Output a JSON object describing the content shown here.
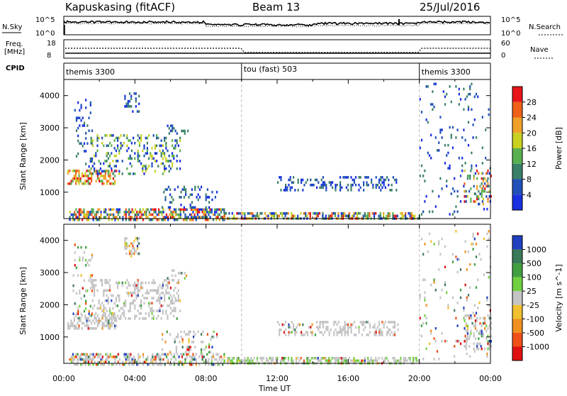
{
  "header": {
    "station": "Kapuskasing (fitACF)",
    "beam": "Beam 13",
    "date": "25/Jul/2016"
  },
  "noise_panel": {
    "left_label": "N.Sky",
    "left_ticks": [
      "10^5",
      "10^0"
    ],
    "right_ticks": [
      "10^5",
      "10^0"
    ],
    "right_label": "N.Search"
  },
  "freq_panel": {
    "left_label_1": "Freq.",
    "left_label_2": "[MHz]",
    "left_ticks": [
      "18",
      "8"
    ],
    "right_ticks": [
      "60",
      "0"
    ],
    "right_label": "Nave"
  },
  "cpid_panel": {
    "label": "CPID",
    "modes": [
      {
        "name": "themis 3300",
        "start_hour": 0,
        "end_hour": 10
      },
      {
        "name": "tou (fast) 503",
        "start_hour": 10,
        "end_hour": 20
      },
      {
        "name": "themis 3300",
        "start_hour": 20,
        "end_hour": 24
      }
    ]
  },
  "chart_data": [
    {
      "type": "heatmap",
      "name": "power",
      "ylabel": "Slant Range [km]",
      "xlabel": "",
      "yticks": [
        "4000",
        "3000",
        "2000",
        "1000"
      ],
      "ylim": [
        180,
        4500
      ],
      "xlim": [
        0,
        24
      ],
      "colorbar_label": "Power [dB]",
      "colorbar_ticks": [
        "28",
        "24",
        "20",
        "16",
        "12",
        "8",
        "4"
      ],
      "colorbar_colors": [
        "#e8141a",
        "#f06018",
        "#f0a028",
        "#c8d020",
        "#58b050",
        "#3a8068",
        "#2050b8",
        "#1830e0"
      ],
      "regions": [
        {
          "x": [
            0.3,
            9.0
          ],
          "y": [
            180,
            500
          ],
          "density": 0.55,
          "level": "mixed"
        },
        {
          "x": [
            0.2,
            3.0
          ],
          "y": [
            1300,
            1700
          ],
          "density": 0.5,
          "level": "high"
        },
        {
          "x": [
            1.5,
            6.5
          ],
          "y": [
            1600,
            2800
          ],
          "density": 0.25,
          "level": "mid"
        },
        {
          "x": [
            0.5,
            1.6
          ],
          "y": [
            1700,
            3900
          ],
          "density": 0.15,
          "level": "low"
        },
        {
          "x": [
            3.4,
            4.2
          ],
          "y": [
            3500,
            4100
          ],
          "density": 0.35,
          "level": "low"
        },
        {
          "x": [
            5.8,
            7.0
          ],
          "y": [
            2800,
            3100
          ],
          "density": 0.3,
          "level": "low"
        },
        {
          "x": [
            5.5,
            8.6
          ],
          "y": [
            500,
            1200
          ],
          "density": 0.2,
          "level": "low"
        },
        {
          "x": [
            9.0,
            20.0
          ],
          "y": [
            180,
            380
          ],
          "density": 0.6,
          "level": "mixed"
        },
        {
          "x": [
            12.0,
            18.8
          ],
          "y": [
            1100,
            1500
          ],
          "density": 0.3,
          "level": "low"
        },
        {
          "x": [
            20.0,
            24.0
          ],
          "y": [
            300,
            4400
          ],
          "density": 0.06,
          "level": "low"
        },
        {
          "x": [
            22.5,
            24.0
          ],
          "y": [
            600,
            1700
          ],
          "density": 0.35,
          "level": "mixed"
        }
      ]
    },
    {
      "type": "heatmap",
      "name": "velocity",
      "ylabel": "Slant Range [km]",
      "xlabel": "Time UT",
      "yticks": [
        "4000",
        "3000",
        "2000",
        "1000"
      ],
      "xticks": [
        "00:00",
        "04:00",
        "08:00",
        "12:00",
        "16:00",
        "20:00",
        "00:00"
      ],
      "ylim": [
        180,
        4500
      ],
      "xlim": [
        0,
        24
      ],
      "colorbar_label": "Velocity [m s^-1]",
      "colorbar_ticks": [
        "1000",
        "500",
        "100",
        "25",
        "-25",
        "-100",
        "-500",
        "-1000"
      ],
      "colorbar_colors": [
        "#2040c0",
        "#3a7a58",
        "#40a040",
        "#70d040",
        "#c4c4c4",
        "#f0c030",
        "#f09020",
        "#f05018",
        "#e01010"
      ],
      "regions": [
        {
          "x": [
            0.3,
            9.0
          ],
          "y": [
            180,
            500
          ],
          "density": 0.55,
          "level": "mixed"
        },
        {
          "x": [
            0.2,
            3.0
          ],
          "y": [
            1300,
            1700
          ],
          "density": 0.55,
          "level": "grey"
        },
        {
          "x": [
            1.5,
            6.5
          ],
          "y": [
            1600,
            2800
          ],
          "density": 0.3,
          "level": "grey"
        },
        {
          "x": [
            0.5,
            1.6
          ],
          "y": [
            1700,
            3900
          ],
          "density": 0.15,
          "level": "mixed"
        },
        {
          "x": [
            3.4,
            4.2
          ],
          "y": [
            3500,
            4100
          ],
          "density": 0.35,
          "level": "mixed"
        },
        {
          "x": [
            5.8,
            7.0
          ],
          "y": [
            2800,
            3100
          ],
          "density": 0.3,
          "level": "mixed"
        },
        {
          "x": [
            5.5,
            8.6
          ],
          "y": [
            500,
            1200
          ],
          "density": 0.2,
          "level": "mixed"
        },
        {
          "x": [
            9.0,
            20.0
          ],
          "y": [
            180,
            380
          ],
          "density": 0.6,
          "level": "greygreen"
        },
        {
          "x": [
            12.0,
            18.8
          ],
          "y": [
            1100,
            1500
          ],
          "density": 0.35,
          "level": "grey"
        },
        {
          "x": [
            20.0,
            24.0
          ],
          "y": [
            300,
            4400
          ],
          "density": 0.06,
          "level": "mixed"
        },
        {
          "x": [
            22.5,
            24.0
          ],
          "y": [
            600,
            1700
          ],
          "density": 0.35,
          "level": "mixed"
        }
      ]
    }
  ]
}
